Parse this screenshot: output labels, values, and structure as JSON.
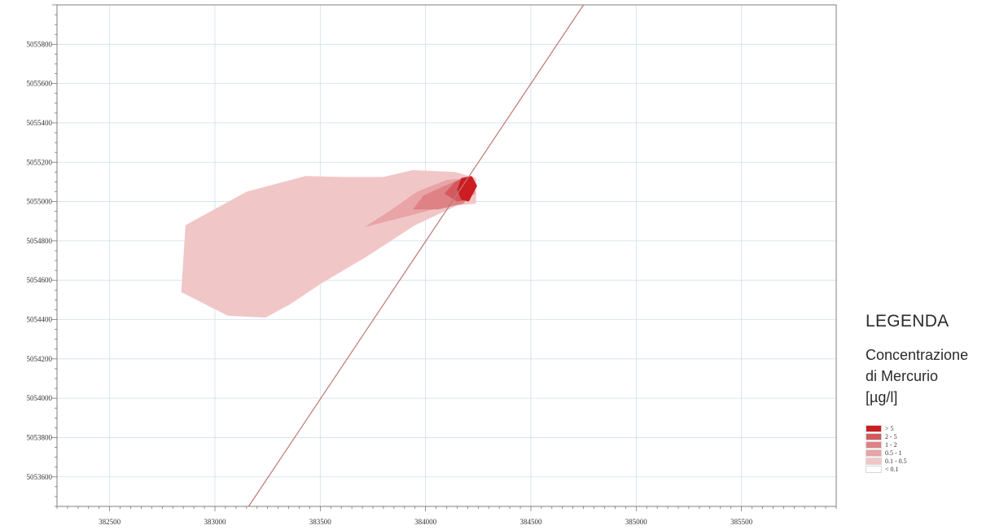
{
  "map": {
    "x_range": [
      382250,
      385950
    ],
    "y_range": [
      5053450,
      5056000
    ],
    "x_tick_labels": [
      "382500",
      "383000",
      "383500",
      "384000",
      "384500",
      "385000",
      "385500"
    ],
    "y_tick_labels": [
      "5053600",
      "5053800",
      "5054000",
      "5054200",
      "5054400",
      "5054600",
      "5054800",
      "5055000",
      "5055200",
      "5055400",
      "5055600",
      "5055800"
    ],
    "grid": true,
    "line": {
      "from": [
        383160,
        5053450
      ],
      "to": [
        384750,
        5056000
      ],
      "color": "#c07878"
    },
    "plume": [
      {
        "range": "0.1 - 0.5",
        "color": "#f1c6c7",
        "polygon": [
          [
            382840,
            5054540
          ],
          [
            382860,
            5054880
          ],
          [
            383150,
            5055050
          ],
          [
            383430,
            5055130
          ],
          [
            383600,
            5055125
          ],
          [
            383800,
            5055125
          ],
          [
            383940,
            5055160
          ],
          [
            384140,
            5055150
          ],
          [
            384240,
            5055120
          ],
          [
            384240,
            5054990
          ],
          [
            384150,
            5054980
          ],
          [
            383950,
            5054880
          ],
          [
            383850,
            5054810
          ],
          [
            383720,
            5054720
          ],
          [
            383500,
            5054580
          ],
          [
            383360,
            5054480
          ],
          [
            383240,
            5054410
          ],
          [
            383060,
            5054420
          ]
        ]
      },
      {
        "range": "0.5 - 1",
        "color": "#e8a4a6",
        "polygon": [
          [
            383710,
            5054870
          ],
          [
            383840,
            5054960
          ],
          [
            383960,
            5055050
          ],
          [
            384100,
            5055110
          ],
          [
            384210,
            5055120
          ],
          [
            384240,
            5055040
          ],
          [
            384140,
            5054990
          ],
          [
            383930,
            5054930
          ]
        ]
      },
      {
        "range": "1 - 2",
        "color": "#de8285",
        "polygon": [
          [
            383940,
            5054960
          ],
          [
            383990,
            5055030
          ],
          [
            384090,
            5055080
          ],
          [
            384180,
            5055120
          ],
          [
            384235,
            5055060
          ],
          [
            384180,
            5054990
          ],
          [
            384060,
            5054960
          ]
        ]
      },
      {
        "range": "2 - 5",
        "color": "#d25a5e",
        "polygon": [
          [
            384090,
            5055040
          ],
          [
            384140,
            5055100
          ],
          [
            384190,
            5055125
          ],
          [
            384235,
            5055080
          ],
          [
            384210,
            5055010
          ],
          [
            384150,
            5055000
          ]
        ]
      },
      {
        "range": "> 5",
        "color": "#cc1d22",
        "polygon": [
          [
            384150,
            5055060
          ],
          [
            384170,
            5055120
          ],
          [
            384220,
            5055130
          ],
          [
            384245,
            5055080
          ],
          [
            384205,
            5055000
          ],
          [
            384170,
            5055010
          ]
        ]
      }
    ]
  },
  "legend": {
    "title": "LEGENDA",
    "subtitle_lines": [
      "Concentrazione",
      "di Mercurio",
      "[µg/l]"
    ],
    "items": [
      {
        "label": "> 5",
        "color": "#cc1d22"
      },
      {
        "label": "2 - 5",
        "color": "#d25a5e"
      },
      {
        "label": "1 - 2",
        "color": "#de8285"
      },
      {
        "label": "0.5 - 1",
        "color": "#e8a4a6"
      },
      {
        "label": "0.1 - 0.5",
        "color": "#f1c6c7"
      },
      {
        "label": "< 0.1",
        "color": "#ffffff"
      }
    ]
  }
}
